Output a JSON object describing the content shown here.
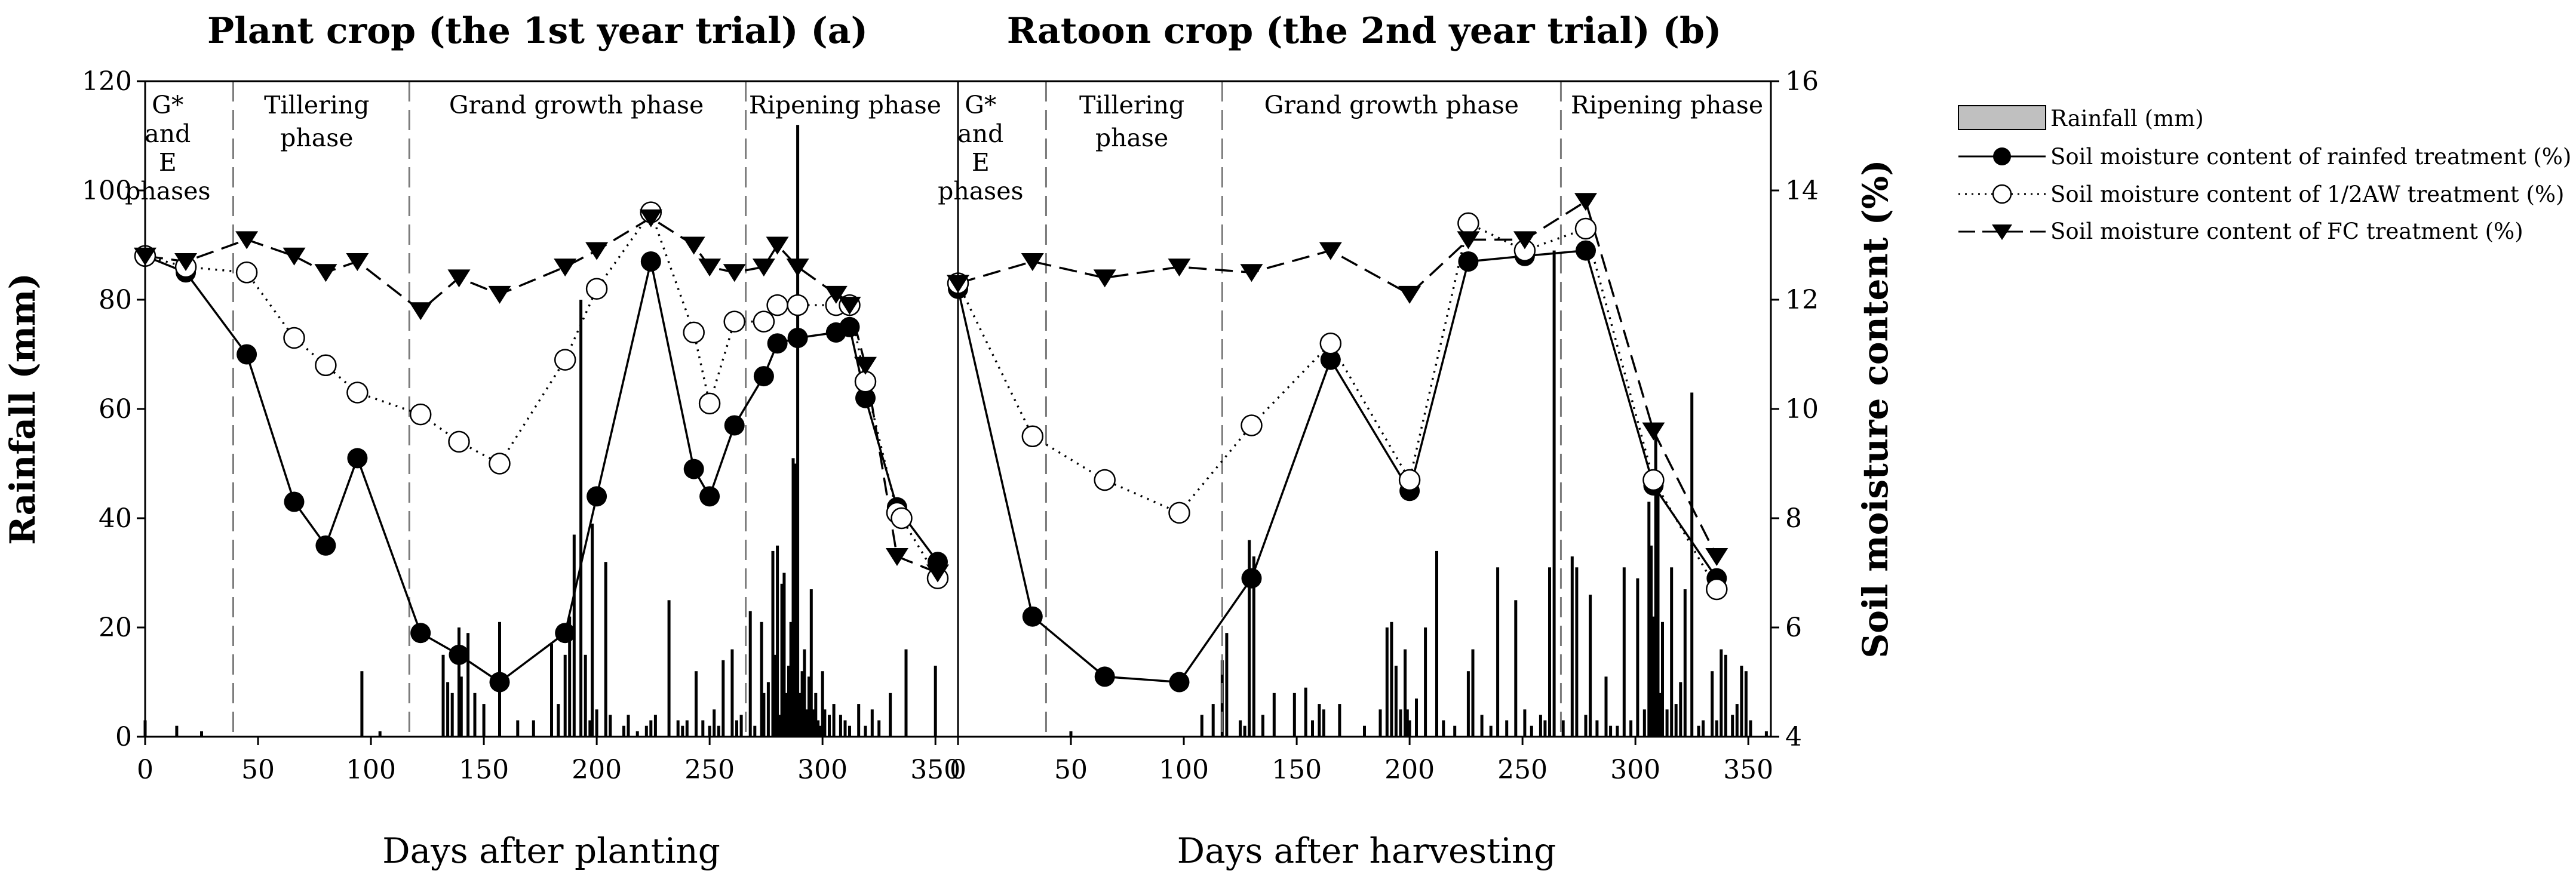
{
  "chart_data": [
    {
      "type": "line",
      "title": "Plant crop (the 1st year trial) (a)",
      "xlabel": "Days after planting",
      "ylabel_left": "Rainfall (mm)",
      "ylabel_right": "",
      "xlim": [
        0,
        360
      ],
      "x_ticks": [
        0,
        50,
        100,
        150,
        200,
        250,
        300,
        350
      ],
      "ylim_left": [
        0,
        120
      ],
      "y_ticks_left": [
        0,
        20,
        40,
        60,
        80,
        100,
        120
      ],
      "ylim_right": [
        4,
        16
      ],
      "phase_boundaries": [
        39,
        117,
        266
      ],
      "phases": [
        {
          "label_lines": [
            "G*",
            "and",
            "E",
            "phases"
          ],
          "x": 10
        },
        {
          "label_lines": [
            "Tillering",
            "phase"
          ],
          "x": 76
        },
        {
          "label_lines": [
            "Grand growth phase"
          ],
          "x": 191
        },
        {
          "label_lines": [
            "Ripening phase"
          ],
          "x": 310
        }
      ],
      "series": [
        {
          "name": "Soil moisture content of rainfed treatment (%)",
          "marker": "filled-circle",
          "line": "solid",
          "x": [
            0,
            18,
            45,
            66,
            80,
            94,
            122,
            139,
            157,
            186,
            200,
            224,
            243,
            250,
            261,
            274,
            280,
            289,
            306,
            312,
            319,
            333,
            351
          ],
          "y": [
            12.8,
            12.5,
            11.0,
            8.3,
            7.5,
            9.1,
            5.9,
            5.5,
            5.0,
            5.9,
            8.4,
            12.7,
            8.9,
            8.4,
            9.7,
            10.6,
            11.2,
            11.3,
            11.4,
            11.5,
            10.2,
            8.2,
            7.2
          ]
        },
        {
          "name": "Soil moisture content of 1/2AW treatment (%)",
          "marker": "open-circle",
          "line": "dotted",
          "x": [
            0,
            18,
            45,
            66,
            80,
            94,
            122,
            139,
            157,
            186,
            200,
            224,
            243,
            250,
            261,
            274,
            280,
            289,
            306,
            312,
            319,
            333,
            335,
            351
          ],
          "y": [
            12.8,
            12.6,
            12.5,
            11.3,
            10.8,
            10.3,
            9.9,
            9.4,
            9.0,
            10.9,
            12.2,
            13.6,
            11.4,
            10.1,
            11.6,
            11.6,
            11.9,
            11.9,
            11.9,
            11.9,
            10.5,
            8.1,
            8.0,
            6.9
          ]
        },
        {
          "name": "Soil moisture content of  FC treatment (%)",
          "marker": "triangle-down",
          "line": "dashed",
          "x": [
            0,
            18,
            45,
            66,
            80,
            94,
            122,
            139,
            157,
            186,
            200,
            224,
            243,
            250,
            261,
            274,
            280,
            289,
            306,
            312,
            319,
            333,
            351
          ],
          "y": [
            12.8,
            12.7,
            13.1,
            12.8,
            12.5,
            12.7,
            11.8,
            12.4,
            12.1,
            12.6,
            12.9,
            13.5,
            13.0,
            12.6,
            12.5,
            12.6,
            13.0,
            12.6,
            12.1,
            11.9,
            10.8,
            7.3,
            7.0
          ]
        }
      ],
      "rainfall_mm": {
        "x": [
          0,
          14,
          25,
          96,
          104,
          132,
          134,
          136,
          139,
          140,
          143,
          146,
          150,
          157,
          165,
          172,
          180,
          183,
          186,
          188,
          190,
          193,
          195,
          197,
          198,
          200,
          204,
          206,
          212,
          214,
          218,
          222,
          224,
          226,
          232,
          236,
          238,
          240,
          244,
          247,
          250,
          252,
          254,
          256,
          260,
          262,
          264,
          268,
          270,
          273,
          274,
          276,
          278,
          279,
          280,
          281,
          282,
          283,
          284,
          285,
          286,
          287,
          288,
          289,
          290,
          291,
          292,
          293,
          294,
          295,
          296,
          297,
          298,
          299,
          300,
          301,
          303,
          305,
          308,
          310,
          312,
          316,
          319,
          322,
          325,
          330,
          337,
          350
        ],
        "values": [
          3,
          2,
          1,
          12,
          1,
          15,
          10,
          8,
          20,
          11,
          19,
          8,
          6,
          21,
          3,
          3,
          17,
          6,
          15,
          22,
          37,
          80,
          15,
          3,
          39,
          5,
          32,
          4,
          2,
          4,
          1,
          2,
          3,
          4,
          25,
          3,
          2,
          3,
          12,
          3,
          2,
          5,
          2,
          14,
          16,
          3,
          4,
          23,
          2,
          21,
          8,
          10,
          34,
          15,
          35,
          4,
          28,
          30,
          8,
          13,
          21,
          51,
          50,
          112,
          8,
          12,
          16,
          5,
          11,
          27,
          5,
          8,
          3,
          2,
          12,
          5,
          4,
          6,
          4,
          3,
          2,
          6,
          2,
          5,
          3,
          8,
          16,
          13
        ]
      }
    },
    {
      "type": "line",
      "title": "Ratoon crop (the 2nd year trial) (b)",
      "xlabel": "Days after harvesting",
      "ylabel_left": "",
      "ylabel_right": "Soil moisture content (%)",
      "xlim": [
        0,
        360
      ],
      "x_ticks": [
        0,
        50,
        100,
        150,
        200,
        250,
        300,
        350
      ],
      "ylim_left": [
        0,
        120
      ],
      "ylim_right": [
        4,
        16
      ],
      "y_ticks_right": [
        4,
        6,
        8,
        10,
        12,
        14,
        16
      ],
      "phase_boundaries": [
        39,
        117,
        267
      ],
      "phases": [
        {
          "label_lines": [
            "G*",
            "and",
            "E",
            "phases"
          ],
          "x": 10
        },
        {
          "label_lines": [
            "Tillering",
            "phase"
          ],
          "x": 77
        },
        {
          "label_lines": [
            "Grand growth phase"
          ],
          "x": 192
        },
        {
          "label_lines": [
            "Ripening phase"
          ],
          "x": 314
        }
      ],
      "series": [
        {
          "name": "Soil moisture content of rainfed treatment (%)",
          "marker": "filled-circle",
          "line": "solid",
          "x": [
            0,
            33,
            65,
            98,
            130,
            165,
            200,
            226,
            251,
            278,
            308,
            336
          ],
          "y": [
            12.2,
            6.2,
            5.1,
            5.0,
            6.9,
            10.9,
            8.5,
            12.7,
            12.8,
            12.9,
            8.6,
            6.9
          ]
        },
        {
          "name": "Soil moisture content of 1/2AW treatment (%)",
          "marker": "open-circle",
          "line": "dotted",
          "x": [
            0,
            33,
            65,
            98,
            130,
            165,
            200,
            226,
            251,
            278,
            308,
            336
          ],
          "y": [
            12.3,
            9.5,
            8.7,
            8.1,
            9.7,
            11.2,
            8.7,
            13.4,
            12.9,
            13.3,
            8.7,
            6.7
          ]
        },
        {
          "name": "Soil moisture content of  FC treatment (%)",
          "marker": "triangle-down",
          "line": "dashed",
          "x": [
            0,
            33,
            65,
            98,
            130,
            165,
            200,
            226,
            251,
            278,
            308,
            336
          ],
          "y": [
            12.3,
            12.7,
            12.4,
            12.6,
            12.5,
            12.9,
            12.1,
            13.1,
            13.1,
            13.8,
            9.6,
            7.3
          ]
        }
      ],
      "rainfall_mm": {
        "x": [
          50,
          108,
          113,
          117,
          119,
          125,
          127,
          129,
          131,
          135,
          140,
          149,
          154,
          157,
          160,
          162,
          169,
          180,
          187,
          190,
          192,
          194,
          196,
          198,
          199,
          200,
          203,
          207,
          212,
          215,
          220,
          226,
          228,
          232,
          236,
          239,
          243,
          247,
          251,
          254,
          258,
          260,
          262,
          264,
          268,
          272,
          274,
          278,
          280,
          283,
          287,
          289,
          292,
          295,
          298,
          301,
          304,
          306,
          307,
          308,
          309,
          310,
          311,
          312,
          314,
          316,
          318,
          320,
          322,
          325,
          328,
          330,
          334,
          336,
          338,
          340,
          343,
          345,
          347,
          349,
          351,
          358
        ],
        "values": [
          1,
          4,
          6,
          14,
          19,
          3,
          2,
          36,
          33,
          4,
          8,
          8,
          9,
          3,
          6,
          5,
          6,
          2,
          5,
          20,
          21,
          13,
          5,
          16,
          5,
          3,
          7,
          20,
          34,
          3,
          2,
          12,
          16,
          4,
          2,
          31,
          3,
          25,
          5,
          2,
          4,
          3,
          31,
          89,
          3,
          33,
          31,
          4,
          26,
          3,
          11,
          2,
          2,
          31,
          3,
          29,
          5,
          43,
          35,
          22,
          57,
          48,
          8,
          21,
          5,
          31,
          6,
          10,
          27,
          63,
          2,
          3,
          12,
          3,
          16,
          15,
          4,
          6,
          13,
          12,
          3,
          1
        ]
      }
    }
  ],
  "legend": {
    "rainfall": "Rainfall (mm)",
    "rainfed": "Soil moisture content of rainfed treatment (%)",
    "half_aw": "Soil moisture content of 1/2AW treatment (%)",
    "fc": "Soil moisture content of  FC treatment (%)"
  }
}
